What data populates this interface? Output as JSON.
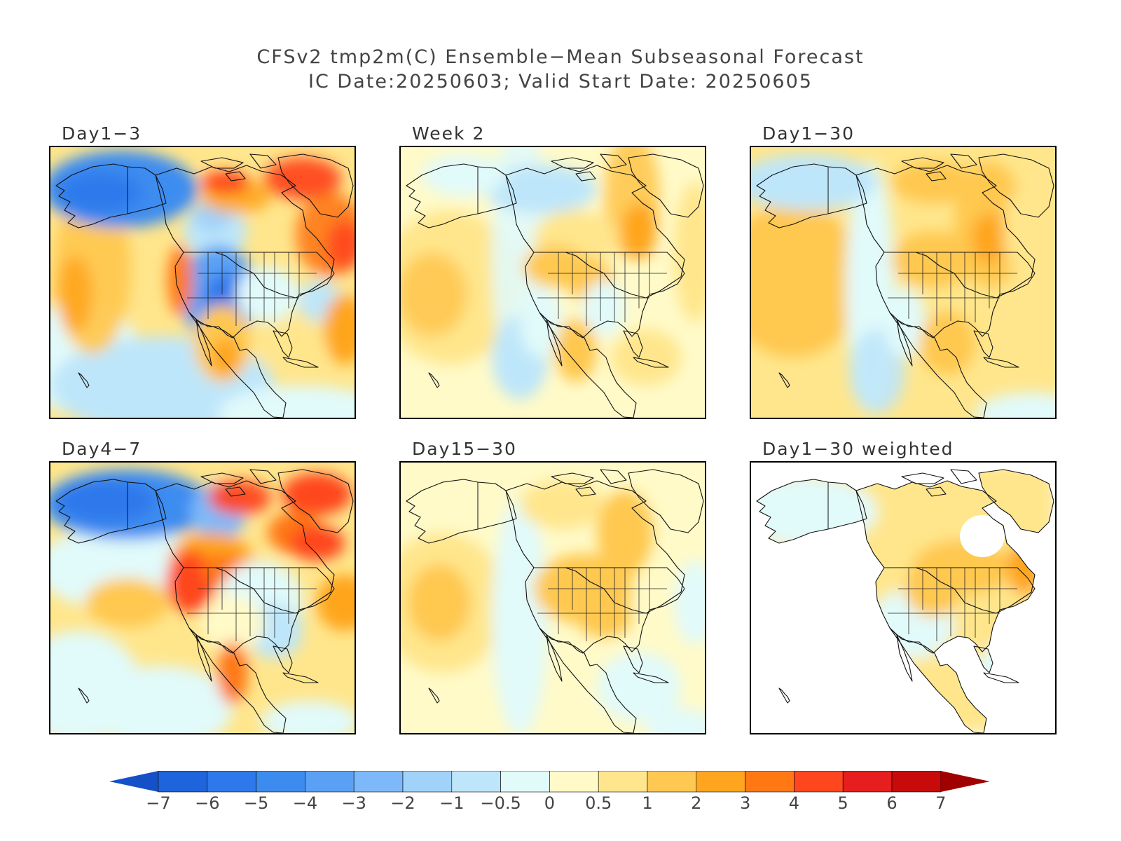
{
  "title": {
    "line1": "CFSv2 tmp2m(C) Ensemble−Mean Subseasonal Forecast",
    "line2": "IC Date:20250603; Valid Start Date: 20250605"
  },
  "panels": [
    {
      "id": "day1-3",
      "label": "Day1−3",
      "pattern": "d13"
    },
    {
      "id": "week2",
      "label": "Week 2",
      "pattern": "w2"
    },
    {
      "id": "day1-30",
      "label": "Day1−30",
      "pattern": "d130"
    },
    {
      "id": "day4-7",
      "label": "Day4−7",
      "pattern": "d47"
    },
    {
      "id": "day15-30",
      "label": "Day15−30",
      "pattern": "d1530"
    },
    {
      "id": "day1-30-weighted",
      "label": "Day1−30 weighted",
      "pattern": "weighted"
    }
  ],
  "colorbar": {
    "labels": [
      "−7",
      "−6",
      "−5",
      "−4",
      "−3",
      "−2",
      "−1",
      "−0.5",
      "0",
      "0.5",
      "1",
      "2",
      "3",
      "4",
      "5",
      "6",
      "7"
    ],
    "colors": [
      "#1e64dc",
      "#2d78eb",
      "#3c8cf0",
      "#5aa0f5",
      "#7db9fa",
      "#a0d2fa",
      "#bee6fa",
      "#e1fafa",
      "#fffac8",
      "#ffe68c",
      "#ffc850",
      "#ffa51e",
      "#ff7814",
      "#ff461e",
      "#e61e1e",
      "#c80a0a"
    ],
    "low_color": "#1450c8",
    "high_color": "#a00000"
  }
}
